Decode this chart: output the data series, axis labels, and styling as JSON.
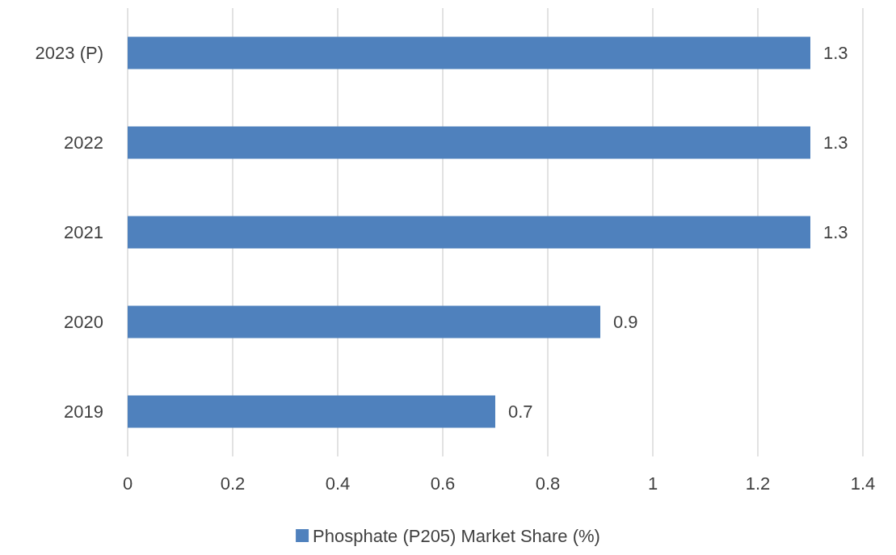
{
  "chart_data": {
    "type": "bar",
    "orientation": "horizontal",
    "categories": [
      "2023 (P)",
      "2022",
      "2021",
      "2020",
      "2019"
    ],
    "series": [
      {
        "name": "Phosphate (P205) Market Share (%)",
        "color": "#4f81bd",
        "values": [
          1.3,
          1.3,
          1.3,
          0.9,
          0.7
        ]
      }
    ],
    "xlim": [
      0,
      1.4
    ],
    "xticks": [
      0,
      0.2,
      0.4,
      0.6,
      0.8,
      1,
      1.2,
      1.4
    ],
    "grid": "x",
    "legend": "bottom",
    "data_labels": true
  }
}
